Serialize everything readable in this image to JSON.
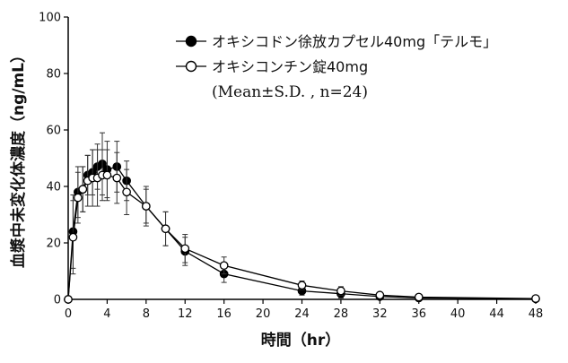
{
  "chart_data": {
    "type": "line",
    "title": "",
    "xlabel": "時間（hr）",
    "ylabel": "血漿中未変化体濃度（ng/mL）",
    "xlim": [
      0,
      48
    ],
    "ylim": [
      0,
      100
    ],
    "x_ticks": [
      0,
      4,
      8,
      12,
      16,
      20,
      24,
      28,
      32,
      36,
      40,
      44,
      48
    ],
    "y_ticks": [
      0,
      20,
      40,
      60,
      80,
      100
    ],
    "grid": false,
    "legend_position": "top-right",
    "legend_note": "(Mean±S.D. , n=24)",
    "series": [
      {
        "name": "オキシコドン徐放カプセル40mg「テルモ」",
        "marker": "filled-circle",
        "color": "#000000",
        "points": [
          {
            "x": 0,
            "y": 0,
            "sd": 0
          },
          {
            "x": 0.5,
            "y": 24,
            "sd": 13
          },
          {
            "x": 1,
            "y": 38,
            "sd": 9
          },
          {
            "x": 1.5,
            "y": 39,
            "sd": 8
          },
          {
            "x": 2,
            "y": 44,
            "sd": 7
          },
          {
            "x": 2.5,
            "y": 45,
            "sd": 8
          },
          {
            "x": 3,
            "y": 47,
            "sd": 8
          },
          {
            "x": 3.5,
            "y": 48,
            "sd": 11
          },
          {
            "x": 4,
            "y": 46,
            "sd": 10
          },
          {
            "x": 5,
            "y": 47,
            "sd": 9
          },
          {
            "x": 6,
            "y": 42,
            "sd": 7
          },
          {
            "x": 8,
            "y": 33,
            "sd": 6
          },
          {
            "x": 10,
            "y": 25,
            "sd": 6
          },
          {
            "x": 12,
            "y": 17,
            "sd": 5
          },
          {
            "x": 16,
            "y": 9,
            "sd": 3
          },
          {
            "x": 24,
            "y": 3,
            "sd": 1.5
          },
          {
            "x": 28,
            "y": 2,
            "sd": 1.5
          },
          {
            "x": 32,
            "y": 1,
            "sd": 0.7
          },
          {
            "x": 36,
            "y": 0.5,
            "sd": 0.4
          },
          {
            "x": 48,
            "y": 0.2,
            "sd": 0.2
          }
        ]
      },
      {
        "name": "オキシコンチン錠40mg",
        "marker": "open-circle",
        "color": "#000000",
        "points": [
          {
            "x": 0,
            "y": 0,
            "sd": 0
          },
          {
            "x": 0.5,
            "y": 22,
            "sd": 13
          },
          {
            "x": 1,
            "y": 36,
            "sd": 9
          },
          {
            "x": 1.5,
            "y": 39,
            "sd": 8
          },
          {
            "x": 2,
            "y": 42,
            "sd": 9
          },
          {
            "x": 2.5,
            "y": 43,
            "sd": 10
          },
          {
            "x": 3,
            "y": 43,
            "sd": 10
          },
          {
            "x": 3.5,
            "y": 44,
            "sd": 9
          },
          {
            "x": 4,
            "y": 44,
            "sd": 9
          },
          {
            "x": 5,
            "y": 43,
            "sd": 9
          },
          {
            "x": 6,
            "y": 38,
            "sd": 8
          },
          {
            "x": 8,
            "y": 33,
            "sd": 7
          },
          {
            "x": 10,
            "y": 25,
            "sd": 6
          },
          {
            "x": 12,
            "y": 18,
            "sd": 5
          },
          {
            "x": 16,
            "y": 12,
            "sd": 3
          },
          {
            "x": 24,
            "y": 5,
            "sd": 1.5
          },
          {
            "x": 28,
            "y": 3,
            "sd": 1.5
          },
          {
            "x": 32,
            "y": 1.5,
            "sd": 0.8
          },
          {
            "x": 36,
            "y": 0.8,
            "sd": 0.5
          },
          {
            "x": 48,
            "y": 0.3,
            "sd": 0.2
          }
        ]
      }
    ]
  }
}
